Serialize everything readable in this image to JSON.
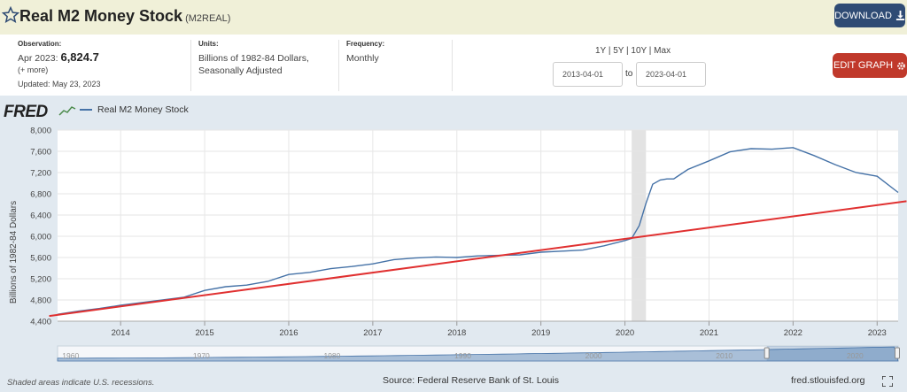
{
  "header": {
    "title": "Real M2 Money Stock",
    "code": "(M2REAL)",
    "download_label": "DOWNLOAD"
  },
  "meta": {
    "observation_label": "Observation:",
    "observation_period": "Apr 2023:",
    "observation_value": "6,824.7",
    "more_label": "(+ more)",
    "updated": "Updated: May 23, 2023",
    "units_label": "Units:",
    "units_line1": "Billions of 1982-84 Dollars,",
    "units_line2": "Seasonally Adjusted",
    "frequency_label": "Frequency:",
    "frequency_value": "Monthly"
  },
  "controls": {
    "range_links": "1Y | 5Y | 10Y | Max",
    "start_date": "2013-04-01",
    "to_label": "to",
    "end_date": "2023-04-01",
    "edit_label": "EDIT GRAPH"
  },
  "graph": {
    "logo": "FRED",
    "series_line_color": "#4572a7",
    "trend_line_color": "#e03030",
    "recession_color": "#e3e3e3"
  },
  "footer": {
    "recession_note": "Shaded areas indicate U.S. recessions.",
    "source": "Source: Federal Reserve Bank of St. Louis",
    "site": "fred.stlouisfed.org"
  },
  "chart_data": {
    "type": "line",
    "legend": [
      "Real M2 Money Stock"
    ],
    "ylabel": "Billions of 1982-84 Dollars",
    "ylim": [
      4400,
      8000
    ],
    "yticks": [
      4400,
      4800,
      5200,
      5600,
      6000,
      6400,
      6800,
      7200,
      7600,
      8000
    ],
    "ytick_labels": [
      "4,400",
      "4,800",
      "5,200",
      "5,600",
      "6,000",
      "6,400",
      "6,800",
      "7,200",
      "7,600",
      "8,000"
    ],
    "xlim": [
      2013.25,
      2023.25
    ],
    "xticks": [
      "2014",
      "2015",
      "2016",
      "2017",
      "2018",
      "2019",
      "2020",
      "2021",
      "2022",
      "2023"
    ],
    "grid": true,
    "recession": [
      2020.08,
      2020.25
    ],
    "series": [
      {
        "name": "Real M2 Money Stock",
        "x": [
          2013.25,
          2013.5,
          2013.75,
          2014.0,
          2014.25,
          2014.5,
          2014.75,
          2015.0,
          2015.25,
          2015.5,
          2015.75,
          2016.0,
          2016.25,
          2016.5,
          2016.75,
          2017.0,
          2017.25,
          2017.5,
          2017.75,
          2018.0,
          2018.25,
          2018.5,
          2018.75,
          2019.0,
          2019.25,
          2019.5,
          2019.75,
          2020.0,
          2020.08,
          2020.17,
          2020.25,
          2020.33,
          2020.42,
          2020.5,
          2020.58,
          2020.75,
          2021.0,
          2021.25,
          2021.5,
          2021.75,
          2022.0,
          2022.25,
          2022.5,
          2022.75,
          2023.0,
          2023.25
        ],
        "y": [
          4530,
          4590,
          4640,
          4700,
          4750,
          4800,
          4850,
          4980,
          5050,
          5080,
          5150,
          5280,
          5320,
          5390,
          5430,
          5480,
          5560,
          5590,
          5610,
          5600,
          5630,
          5640,
          5650,
          5700,
          5720,
          5740,
          5820,
          5920,
          5960,
          6200,
          6620,
          6980,
          7060,
          7080,
          7080,
          7260,
          7420,
          7590,
          7650,
          7640,
          7670,
          7520,
          7350,
          7200,
          7130,
          6825
        ]
      }
    ],
    "trend_line": {
      "x": [
        2013.25,
        2023.25
      ],
      "y": [
        4520,
        6640
      ]
    },
    "navigator_ticks": [
      "1960",
      "1970",
      "1980",
      "1990",
      "2000",
      "2010",
      "2020"
    ]
  }
}
